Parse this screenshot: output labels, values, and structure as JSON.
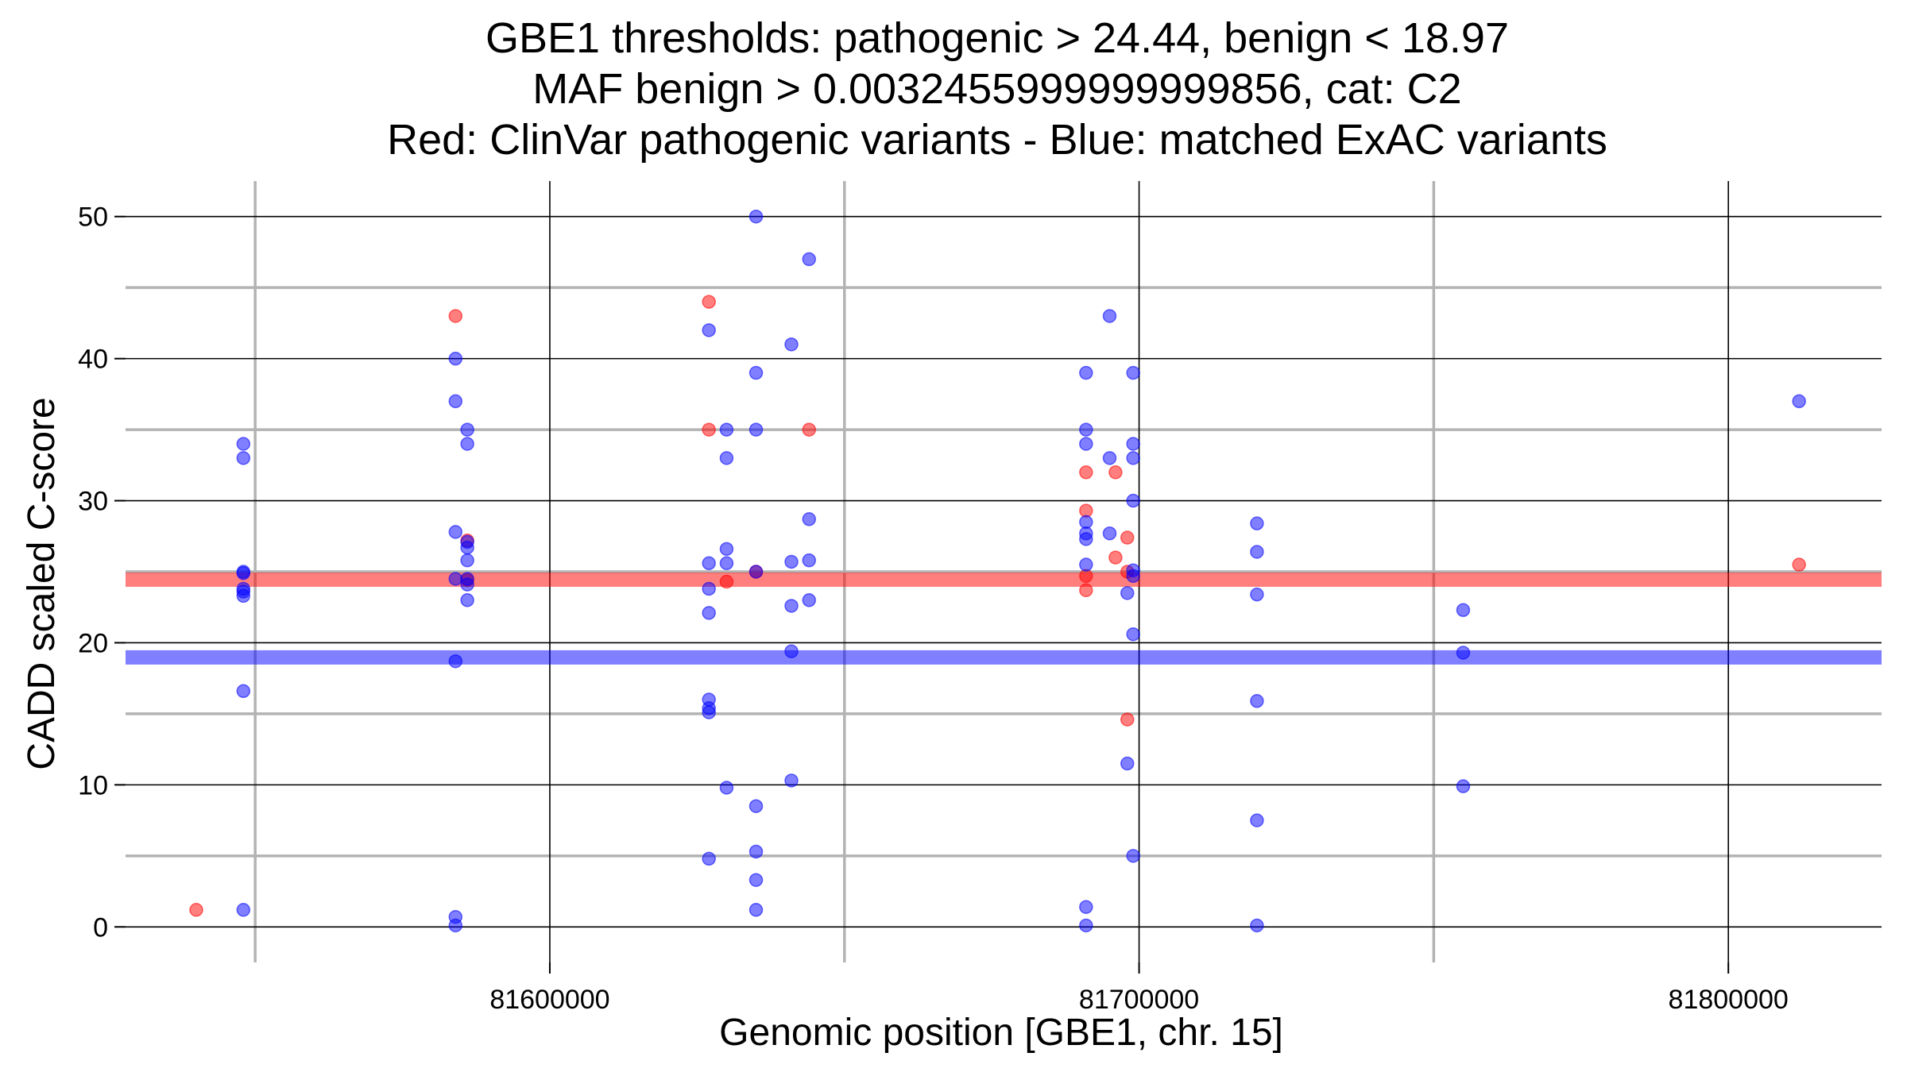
{
  "chart_data": {
    "type": "scatter",
    "title_lines": [
      "GBE1 thresholds: pathogenic > 24.44, benign < 18.97",
      "MAF benign > 0.0032455999999999856, cat: C2",
      "Red: ClinVar pathogenic variants - Blue: matched ExAC variants"
    ],
    "xlabel": "Genomic position [GBE1, chr. 15]",
    "ylabel": "CADD scaled C-score",
    "xlim": [
      81528000,
      81826000
    ],
    "ylim": [
      -2.5,
      52.5
    ],
    "x_major_ticks": [
      81600000,
      81700000,
      81800000
    ],
    "x_tick_labels": [
      "81600000",
      "81700000",
      "81800000"
    ],
    "x_minor_ticks": [
      81550000,
      81650000,
      81750000
    ],
    "y_major_ticks": [
      0,
      10,
      20,
      30,
      40,
      50
    ],
    "y_tick_labels": [
      "0",
      "10",
      "20",
      "30",
      "40",
      "50"
    ],
    "y_minor_ticks": [
      5,
      15,
      25,
      35,
      45
    ],
    "thresholds": [
      {
        "name": "pathogenic",
        "value": 24.44,
        "color": "#ff0000"
      },
      {
        "name": "benign",
        "value": 18.97,
        "color": "#0000ff"
      }
    ],
    "series": [
      {
        "name": "ClinVar pathogenic variants",
        "color": "#ff0000",
        "x": [
          81540000,
          81584000,
          81586000,
          81586000,
          81627000,
          81627000,
          81630000,
          81635000,
          81644000,
          81691000,
          81691000,
          81691000,
          81691000,
          81696000,
          81696000,
          81698000,
          81698000,
          81698000,
          81812000
        ],
        "y": [
          1.2,
          43,
          27.2,
          24.4,
          44,
          35,
          24.3,
          25.0,
          35,
          32,
          29.3,
          24.7,
          23.7,
          32,
          26,
          27.4,
          25,
          14.6,
          25.5
        ]
      },
      {
        "name": "matched ExAC variants",
        "color": "#0000ff",
        "x": [
          81548000,
          81548000,
          81548000,
          81548000,
          81548000,
          81548000,
          81548000,
          81548000,
          81548000,
          81584000,
          81584000,
          81584000,
          81584000,
          81584000,
          81584000,
          81584000,
          81586000,
          81586000,
          81586000,
          81586000,
          81586000,
          81586000,
          81586000,
          81586000,
          81627000,
          81627000,
          81627000,
          81627000,
          81627000,
          81627000,
          81627000,
          81627000,
          81630000,
          81630000,
          81630000,
          81630000,
          81630000,
          81635000,
          81635000,
          81635000,
          81635000,
          81635000,
          81635000,
          81635000,
          81635000,
          81641000,
          81641000,
          81641000,
          81641000,
          81641000,
          81644000,
          81644000,
          81644000,
          81644000,
          81691000,
          81691000,
          81691000,
          81691000,
          81691000,
          81691000,
          81691000,
          81691000,
          81691000,
          81695000,
          81695000,
          81695000,
          81699000,
          81699000,
          81699000,
          81699000,
          81699000,
          81699000,
          81699000,
          81699000,
          81698000,
          81698000,
          81720000,
          81720000,
          81720000,
          81720000,
          81720000,
          81720000,
          81755000,
          81755000,
          81755000,
          81812000
        ],
        "y": [
          34,
          33,
          25,
          24.9,
          23.8,
          23.6,
          23.3,
          16.6,
          1.2,
          40,
          37,
          27.8,
          24.5,
          18.7,
          0.7,
          0.1,
          35,
          34,
          27.1,
          26.7,
          25.8,
          24.5,
          24.1,
          23,
          42,
          25.6,
          23.8,
          22.1,
          16.0,
          15.4,
          15.1,
          4.8,
          35,
          33,
          26.6,
          25.6,
          9.8,
          50,
          39,
          35,
          25,
          8.5,
          5.3,
          3.3,
          1.2,
          41,
          25.7,
          22.6,
          19.4,
          10.3,
          47,
          28.7,
          25.8,
          23,
          39,
          35,
          34,
          28.5,
          27.7,
          27.3,
          25.5,
          1.4,
          0.1,
          43,
          33,
          27.7,
          39,
          34,
          33,
          25.1,
          24.7,
          20.6,
          5.0,
          30,
          23.5,
          11.5,
          28.4,
          26.4,
          23.4,
          15.9,
          7.5,
          0.1,
          22.3,
          19.3,
          9.9,
          37
        ]
      }
    ]
  }
}
